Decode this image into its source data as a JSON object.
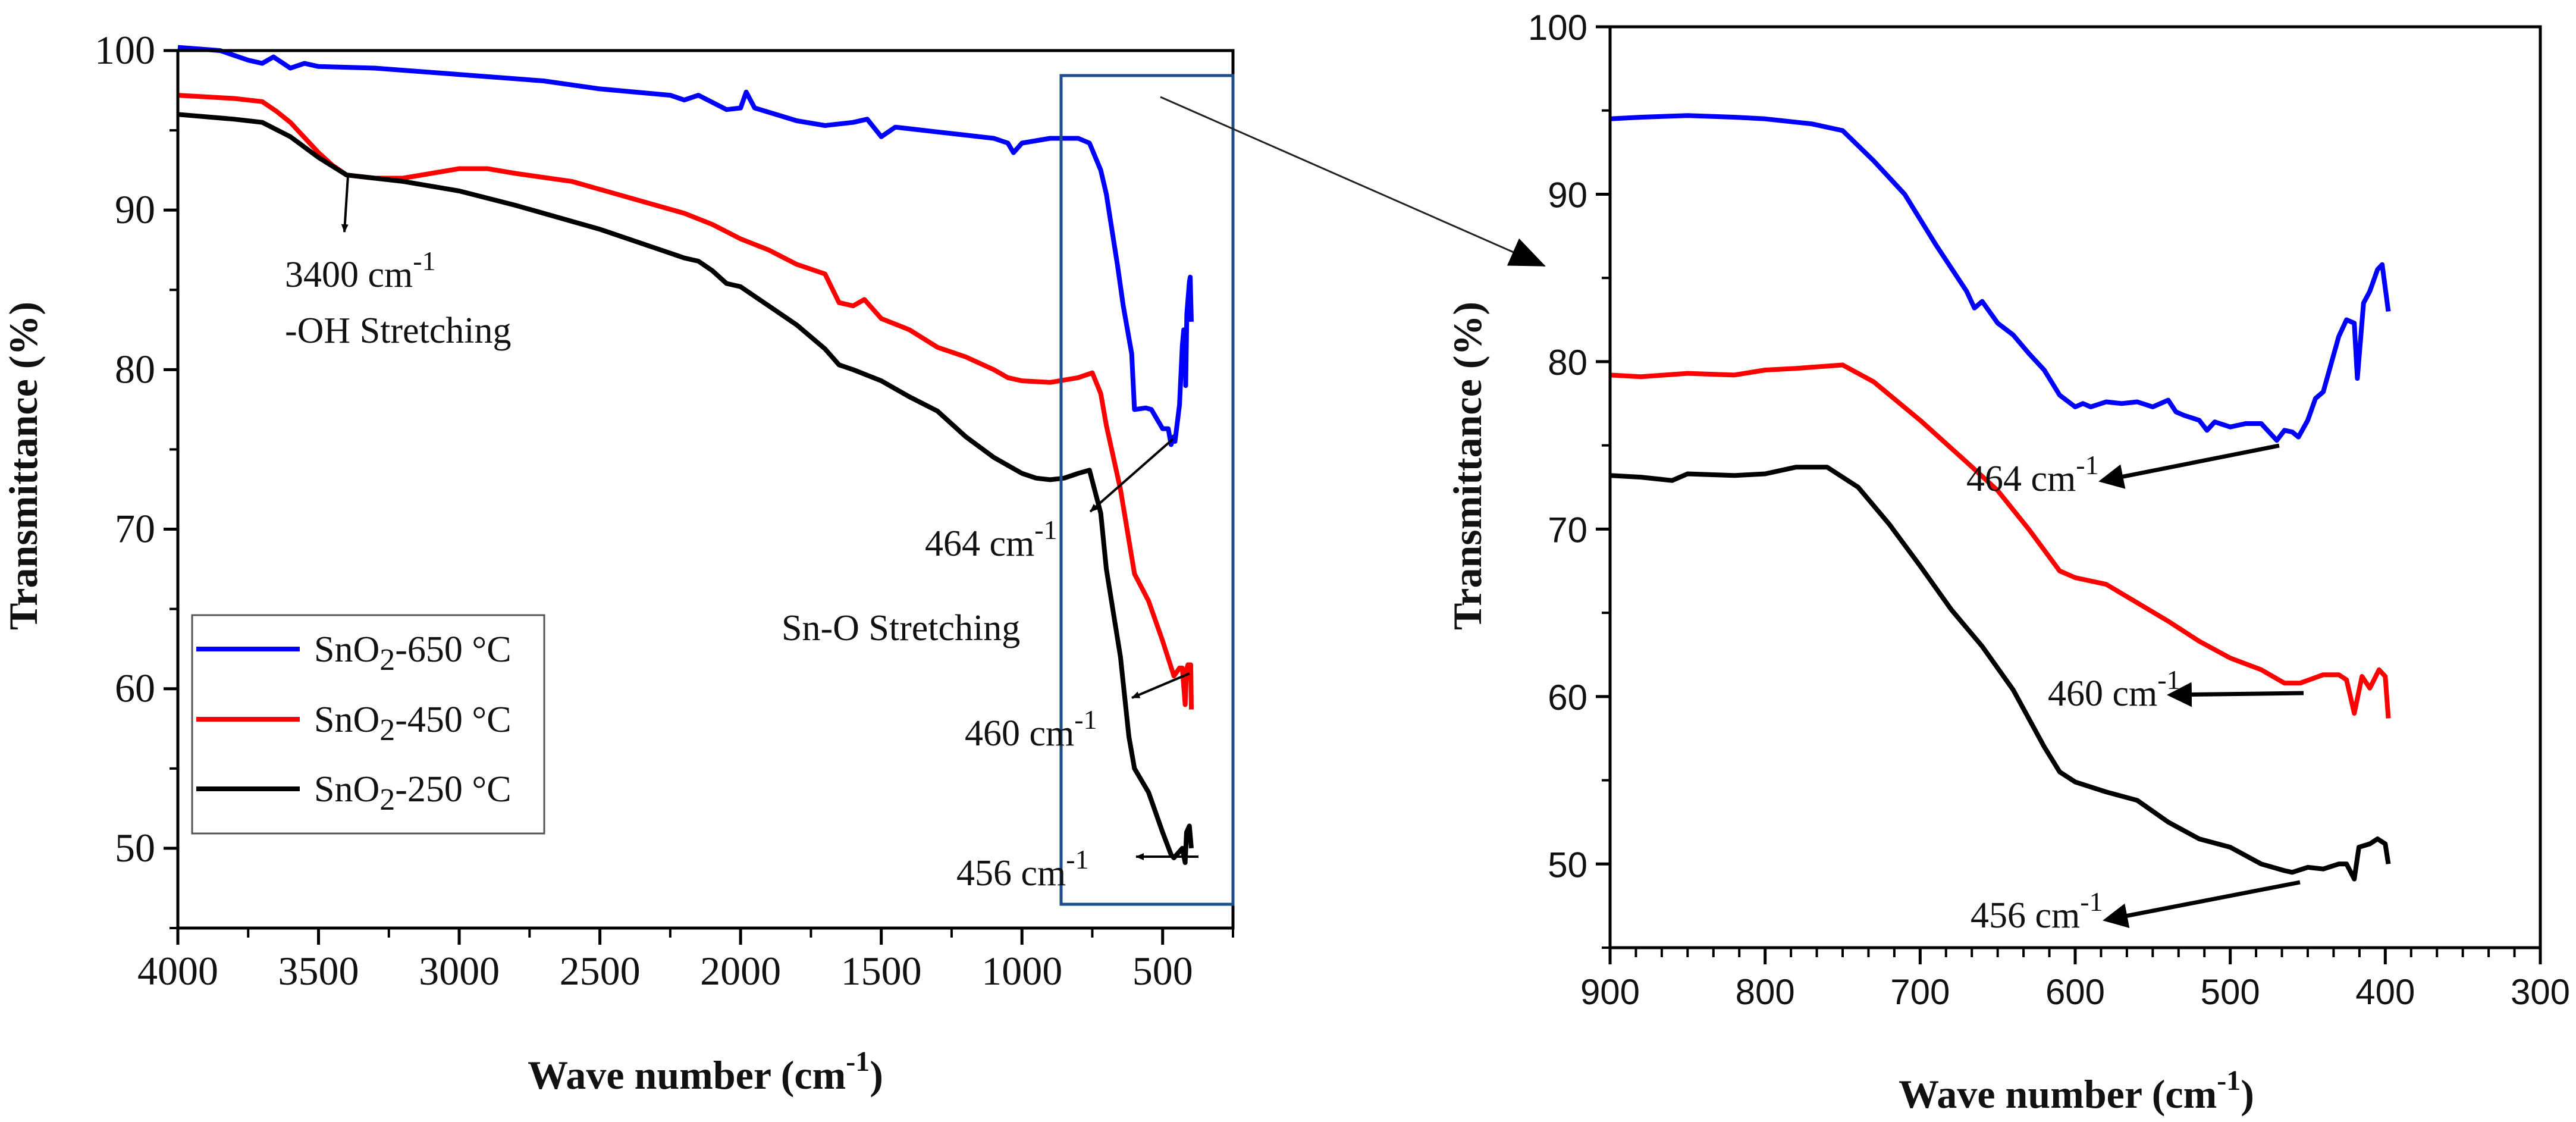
{
  "chart_data": [
    {
      "type": "line",
      "panel": "full-spectrum",
      "xlabel": "Wave number (cm",
      "xlabel_sup": "-1",
      "xlabel_close": ")",
      "ylabel": "Transmittance (%)",
      "xlim": [
        4000,
        250
      ],
      "ylim": [
        45,
        100
      ],
      "xticks": [
        4000,
        3500,
        3000,
        2500,
        2000,
        1500,
        1000,
        500
      ],
      "yticks": [
        50,
        60,
        70,
        80,
        90,
        100
      ],
      "grid": false,
      "legend_placement": "bottom-left",
      "legend": [
        {
          "pre": "SnO",
          "sub": "2",
          "post": "-650 °C",
          "color": "#0000ff"
        },
        {
          "pre": "SnO",
          "sub": "2",
          "post": "-450 °C",
          "color": "#ff0000"
        },
        {
          "pre": "SnO",
          "sub": "2",
          "post": "-250 °C",
          "color": "#000000"
        }
      ],
      "series": [
        {
          "name": "SnO2-650 °C",
          "color": "#0000ff",
          "x": [
            4000,
            3850,
            3750,
            3700,
            3660,
            3600,
            3550,
            3500,
            3300,
            3000,
            2700,
            2500,
            2250,
            2200,
            2150,
            2050,
            2000,
            1980,
            1950,
            1800,
            1700,
            1600,
            1550,
            1500,
            1450,
            1400,
            1300,
            1200,
            1100,
            1050,
            1030,
            1000,
            900,
            800,
            760,
            720,
            700,
            660,
            640,
            610,
            600,
            560,
            540,
            500,
            480,
            470,
            460,
            456,
            440,
            430,
            425,
            420,
            418,
            414,
            405,
            402,
            398
          ],
          "y": [
            100.2,
            100,
            99.4,
            99.2,
            99.6,
            98.9,
            99.2,
            99,
            98.9,
            98.5,
            98.1,
            97.6,
            97.2,
            96.9,
            97.2,
            96.3,
            96.4,
            97.4,
            96.4,
            95.6,
            95.3,
            95.5,
            95.7,
            94.6,
            95.2,
            95.1,
            94.9,
            94.7,
            94.5,
            94.2,
            93.6,
            94.2,
            94.5,
            94.5,
            94.2,
            92.5,
            91,
            86.5,
            84,
            81,
            77.5,
            77.6,
            77.5,
            76.3,
            76.3,
            75.3,
            75.8,
            75.5,
            77.8,
            81.5,
            82.5,
            82.3,
            79,
            83.5,
            85.5,
            85.8,
            83
          ]
        },
        {
          "name": "SnO2-450 °C",
          "color": "#ff0000",
          "x": [
            4000,
            3800,
            3700,
            3650,
            3600,
            3500,
            3450,
            3400,
            3300,
            3200,
            3100,
            3000,
            2900,
            2800,
            2600,
            2500,
            2300,
            2200,
            2100,
            2000,
            1900,
            1800,
            1700,
            1650,
            1600,
            1560,
            1500,
            1400,
            1300,
            1200,
            1100,
            1050,
            1000,
            900,
            800,
            750,
            720,
            700,
            650,
            600,
            550,
            500,
            460,
            440,
            430,
            420,
            415,
            410,
            400,
            398
          ],
          "y": [
            97.2,
            97,
            96.8,
            96.2,
            95.5,
            93.6,
            92.8,
            92.2,
            92,
            92,
            92.3,
            92.6,
            92.6,
            92.3,
            91.8,
            91.3,
            90.3,
            89.8,
            89.1,
            88.2,
            87.5,
            86.6,
            86,
            84.2,
            84,
            84.4,
            83.2,
            82.5,
            81.4,
            80.8,
            80,
            79.5,
            79.3,
            79.2,
            79.5,
            79.8,
            78.5,
            76.5,
            72.5,
            67.2,
            65.5,
            63,
            60.8,
            61.3,
            61.3,
            59,
            61.2,
            61.5,
            61.5,
            58.7
          ]
        },
        {
          "name": "SnO2-250 °C",
          "color": "#000000",
          "x": [
            4000,
            3800,
            3700,
            3600,
            3500,
            3400,
            3300,
            3200,
            3000,
            2800,
            2600,
            2500,
            2300,
            2200,
            2150,
            2100,
            2050,
            2000,
            1900,
            1800,
            1700,
            1650,
            1600,
            1500,
            1400,
            1300,
            1200,
            1100,
            1000,
            950,
            900,
            850,
            800,
            760,
            720,
            700,
            650,
            620,
            600,
            550,
            500,
            470,
            460,
            440,
            430,
            420,
            415,
            405,
            398
          ],
          "y": [
            96,
            95.7,
            95.5,
            94.6,
            93.3,
            92.2,
            92,
            91.8,
            91.2,
            90.3,
            89.3,
            88.8,
            87.6,
            87,
            86.8,
            86.2,
            85.4,
            85.2,
            84,
            82.8,
            81.3,
            80.3,
            80,
            79.3,
            78.3,
            77.4,
            75.8,
            74.5,
            73.5,
            73.2,
            73.1,
            73.2,
            73.5,
            73.7,
            71,
            67.5,
            62,
            57,
            55,
            53.5,
            51,
            49.6,
            49.4,
            49.8,
            50,
            49.1,
            51,
            51.4,
            50
          ]
        }
      ],
      "annotations": [
        {
          "text": "3400 cm",
          "sup": "-1",
          "line2": "-OH Stretching"
        },
        {
          "text": "464 cm",
          "sup": "-1"
        },
        {
          "text": "Sn-O Stretching"
        },
        {
          "text": "460 cm",
          "sup": "-1"
        },
        {
          "text": "456 cm",
          "sup": "-1"
        }
      ]
    },
    {
      "type": "line",
      "panel": "zoomed-900-300",
      "xlabel": "Wave number (cm",
      "xlabel_sup": "-1",
      "xlabel_close": ")",
      "ylabel": "Transmittance (%)",
      "xlim": [
        900,
        300
      ],
      "ylim": [
        45,
        100
      ],
      "xticks": [
        900,
        800,
        700,
        600,
        500,
        400,
        300
      ],
      "yticks": [
        50,
        60,
        70,
        80,
        90,
        100
      ],
      "grid": false,
      "series": [
        {
          "name": "SnO2-650 °C",
          "color": "#0000ff",
          "x": [
            900,
            880,
            850,
            820,
            800,
            770,
            750,
            730,
            710,
            690,
            670,
            665,
            660,
            650,
            640,
            630,
            620,
            610,
            600,
            595,
            590,
            580,
            570,
            560,
            550,
            540,
            535,
            530,
            520,
            515,
            510,
            500,
            490,
            480,
            475,
            470,
            465,
            460,
            456,
            450,
            445,
            440,
            430,
            425,
            420,
            418,
            414,
            410,
            405,
            402,
            398
          ],
          "y": [
            94.5,
            94.6,
            94.7,
            94.6,
            94.5,
            94.2,
            93.8,
            92,
            90,
            87,
            84.2,
            83.2,
            83.6,
            82.3,
            81.6,
            80.5,
            79.5,
            78,
            77.3,
            77.5,
            77.3,
            77.6,
            77.5,
            77.6,
            77.3,
            77.7,
            77,
            76.8,
            76.5,
            75.9,
            76.4,
            76.1,
            76.3,
            76.3,
            75.8,
            75.3,
            75.9,
            75.8,
            75.5,
            76.5,
            77.8,
            78.2,
            81.5,
            82.5,
            82.3,
            79,
            83.5,
            84.2,
            85.5,
            85.8,
            83
          ]
        },
        {
          "name": "SnO2-450 °C",
          "color": "#ff0000",
          "x": [
            900,
            880,
            850,
            820,
            800,
            780,
            750,
            730,
            700,
            670,
            650,
            630,
            610,
            600,
            580,
            560,
            540,
            520,
            500,
            480,
            465,
            455,
            440,
            430,
            425,
            420,
            415,
            410,
            404,
            400,
            398
          ],
          "y": [
            79.2,
            79.1,
            79.3,
            79.2,
            79.5,
            79.6,
            79.8,
            78.8,
            76.5,
            74,
            72.3,
            70,
            67.5,
            67.1,
            66.7,
            65.6,
            64.5,
            63.3,
            62.3,
            61.6,
            60.8,
            60.8,
            61.3,
            61.3,
            61,
            59,
            61.2,
            60.5,
            61.6,
            61.2,
            58.7
          ]
        },
        {
          "name": "SnO2-250 °C",
          "color": "#000000",
          "x": [
            900,
            880,
            860,
            850,
            820,
            800,
            780,
            760,
            740,
            720,
            700,
            680,
            660,
            640,
            620,
            610,
            600,
            580,
            560,
            540,
            520,
            500,
            480,
            465,
            460,
            450,
            440,
            430,
            425,
            420,
            417,
            410,
            405,
            400,
            398
          ],
          "y": [
            73.2,
            73.1,
            72.9,
            73.3,
            73.2,
            73.3,
            73.7,
            73.7,
            72.5,
            70.3,
            67.8,
            65.2,
            63,
            60.4,
            57,
            55.5,
            54.9,
            54.3,
            53.8,
            52.5,
            51.5,
            51,
            50,
            49.6,
            49.5,
            49.8,
            49.7,
            50,
            50,
            49.1,
            51,
            51.2,
            51.5,
            51.2,
            50
          ]
        }
      ],
      "annotations": [
        {
          "text": "464 cm",
          "sup": "-1"
        },
        {
          "text": "460 cm",
          "sup": "-1"
        },
        {
          "text": "456 cm",
          "sup": "-1"
        }
      ]
    }
  ]
}
